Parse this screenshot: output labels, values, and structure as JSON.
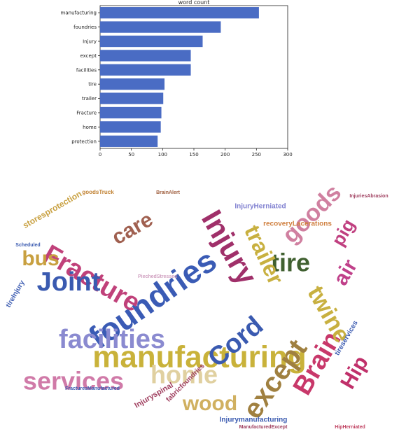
{
  "chart_data": [
    {
      "type": "bar",
      "orientation": "horizontal",
      "title": "word count",
      "categories": [
        "manufacturing",
        "foundries",
        "Injury",
        "except",
        "facilities",
        "tire",
        "trailer",
        "Fracture",
        "home",
        "protection"
      ],
      "values": [
        254,
        193,
        164,
        145,
        145,
        103,
        101,
        98,
        97,
        92
      ],
      "xlim": [
        0,
        300
      ],
      "xticks": [
        0,
        50,
        100,
        150,
        200,
        250,
        300
      ],
      "bar_color": "#4a6cc4",
      "grid": false
    },
    {
      "type": "wordcloud",
      "words": [
        {
          "text": "manufacturing",
          "color": "#c9b23a"
        },
        {
          "text": "foundries",
          "color": "#3a5bb5"
        },
        {
          "text": "Fracture",
          "color": "#c0417a"
        },
        {
          "text": "Injury",
          "color": "#a0306a"
        },
        {
          "text": "facilities",
          "color": "#8a8ad0"
        },
        {
          "text": "services",
          "color": "#d07aa8"
        },
        {
          "text": "home",
          "color": "#e0d0a0"
        },
        {
          "text": "except",
          "color": "#a08040"
        },
        {
          "text": "Brain",
          "color": "#c8386a"
        },
        {
          "text": "Joint",
          "color": "#3a5ab0"
        },
        {
          "text": "Cord",
          "color": "#3a5ab0"
        },
        {
          "text": "tire",
          "color": "#406030"
        },
        {
          "text": "twine",
          "color": "#c8b040"
        },
        {
          "text": "trailer",
          "color": "#c8b040"
        },
        {
          "text": "goods",
          "color": "#d080a0"
        },
        {
          "text": "care",
          "color": "#a06050"
        },
        {
          "text": "bus",
          "color": "#c8a040"
        },
        {
          "text": "wood",
          "color": "#d0b060"
        },
        {
          "text": "air",
          "color": "#c0408a"
        },
        {
          "text": "Hip",
          "color": "#c0306a"
        },
        {
          "text": "pig",
          "color": "#c04080"
        },
        {
          "text": "storesprotection",
          "color": "#c8a040"
        },
        {
          "text": "tireservices",
          "color": "#3a5ab0"
        },
        {
          "text": "Injuryspinal",
          "color": "#a04060"
        },
        {
          "text": "fabricfoundries",
          "color": "#a04060"
        },
        {
          "text": "Injurymanufacturing",
          "color": "#3a5ab0"
        },
        {
          "text": "recoveryLacerations",
          "color": "#d08040"
        },
        {
          "text": "tireInjury",
          "color": "#3a5ab0"
        },
        {
          "text": "InjuryHerniated",
          "color": "#8080d0"
        },
        {
          "text": "goodsTruck",
          "color": "#c08030"
        },
        {
          "text": "BrainAlert",
          "color": "#a06040"
        },
        {
          "text": "InjuriesAbrasion",
          "color": "#a04060"
        },
        {
          "text": "PiechedStresses",
          "color": "#d0a0c0"
        },
        {
          "text": "Scheduled",
          "color": "#3a5ab0"
        },
        {
          "text": "ManufacturedExcept",
          "color": "#a04060"
        },
        {
          "text": "FracturesManufactured",
          "color": "#3a5ab0"
        },
        {
          "text": "HipHerniated",
          "color": "#c04060"
        }
      ]
    }
  ]
}
